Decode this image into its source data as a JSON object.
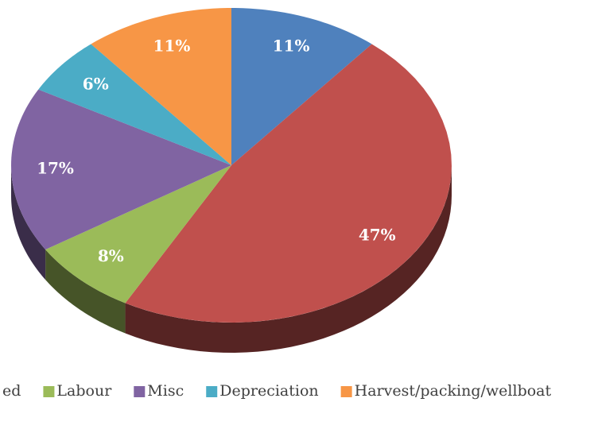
{
  "chart_data": {
    "type": "pie",
    "categories": [
      null,
      "ed",
      "Labour",
      "Misc",
      "Depreciation",
      "Harvest/packing/wellboat"
    ],
    "values": [
      11,
      47,
      8,
      17,
      6,
      11
    ],
    "value_labels": [
      "11%",
      "47%",
      "8%",
      "17%",
      "6%",
      "11%"
    ],
    "colors": [
      "#4f81bd",
      "#c0504d",
      "#9bbb59",
      "#8064a2",
      "#4bacc6",
      "#f79646"
    ],
    "legend": "bottom"
  }
}
